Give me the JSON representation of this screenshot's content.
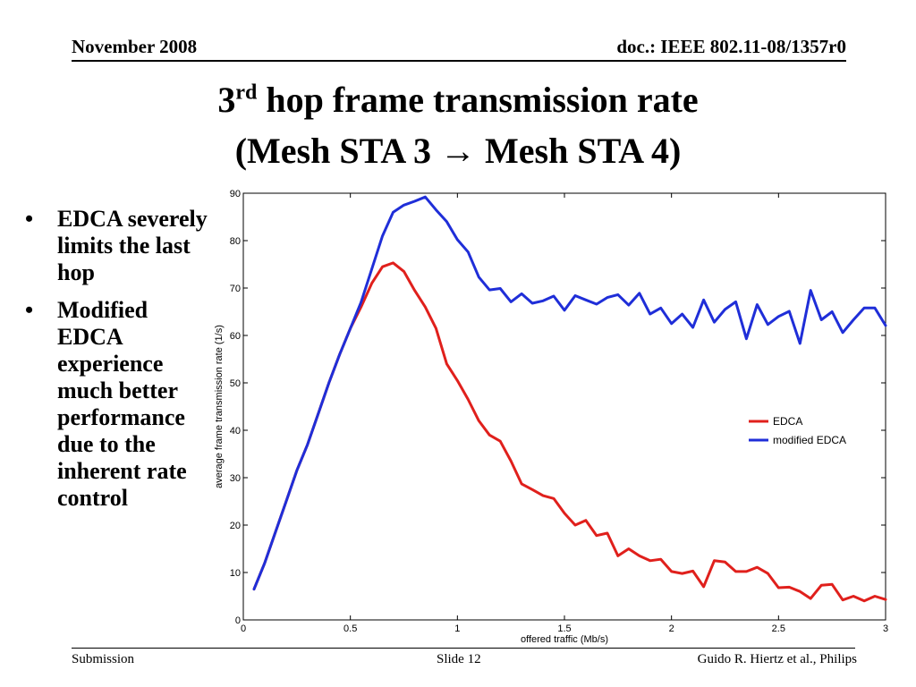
{
  "header": {
    "date": "November 2008",
    "doc": "doc.: IEEE 802.11-08/1357r0"
  },
  "title": {
    "line1_num": "3",
    "line1_sup": "rd",
    "line1_rest": " hop frame transmission rate",
    "line2": "(Mesh STA 3 → Mesh STA 4)"
  },
  "bullets": [
    "EDCA severely limits the last hop",
    "Modified EDCA experience much better performance due to the inherent rate control"
  ],
  "footer": {
    "left": "Submission",
    "center": "Slide 12",
    "right": "Guido R. Hiertz et al., Philips"
  },
  "chart_data": {
    "type": "line",
    "xlabel": "offered traffic (Mb/s)",
    "ylabel": "average frame transmission rate (1/s)",
    "xlim": [
      0,
      3
    ],
    "ylim": [
      0,
      90
    ],
    "xticks": [
      0,
      0.5,
      1,
      1.5,
      2,
      2.5,
      3
    ],
    "yticks": [
      0,
      10,
      20,
      30,
      40,
      50,
      60,
      70,
      80,
      90
    ],
    "xtick_labels": [
      "0",
      "0.5",
      "1",
      "1.5",
      "2",
      "2.5",
      "3"
    ],
    "ytick_labels": [
      "0",
      "10",
      "20",
      "30",
      "40",
      "50",
      "60",
      "70",
      "80",
      "90"
    ],
    "grid": false,
    "legend": "right",
    "x": [
      0.05,
      0.1,
      0.15,
      0.2,
      0.25,
      0.3,
      0.35,
      0.4,
      0.45,
      0.5,
      0.55,
      0.6,
      0.65,
      0.7,
      0.75,
      0.8,
      0.85,
      0.9,
      0.95,
      1.0,
      1.05,
      1.1,
      1.15,
      1.2,
      1.25,
      1.3,
      1.35,
      1.4,
      1.45,
      1.5,
      1.55,
      1.6,
      1.65,
      1.7,
      1.75,
      1.8,
      1.85,
      1.9,
      1.95,
      2.0,
      2.05,
      2.1,
      2.15,
      2.2,
      2.25,
      2.3,
      2.35,
      2.4,
      2.45,
      2.5,
      2.55,
      2.6,
      2.65,
      2.7,
      2.75,
      2.8,
      2.85,
      2.9,
      2.95,
      3.0
    ],
    "series": [
      {
        "name": "EDCA",
        "color": "#e0201c",
        "values": [
          6.5,
          12,
          18.5,
          25,
          31.5,
          37,
          43.5,
          50,
          56,
          61.5,
          66,
          71,
          74.5,
          75.3,
          73.5,
          69.5,
          66,
          61.5,
          54,
          50.5,
          46.5,
          42,
          39,
          37.7,
          33.5,
          28.7,
          27.5,
          26.2,
          25.6,
          22.5,
          20,
          21,
          17.8,
          18.3,
          13.5,
          15,
          13.5,
          12.5,
          12.8,
          10.2,
          9.8,
          10.3,
          7,
          12.5,
          12.2,
          10.2,
          10.2,
          11.1,
          9.8,
          6.8,
          6.9,
          6,
          4.5,
          7.3,
          7.5,
          4.2,
          5,
          4,
          5,
          4.3
        ]
      },
      {
        "name": "modified EDCA",
        "color": "#1f2ed8",
        "values": [
          6.5,
          12,
          18.5,
          25,
          31.5,
          37,
          43.5,
          50,
          56,
          61.5,
          67,
          74,
          81,
          86,
          87.5,
          88.3,
          89.2,
          86.5,
          84,
          80.2,
          77.6,
          72.3,
          69.6,
          69.9,
          67.1,
          68.8,
          66.8,
          67.3,
          68.3,
          65.3,
          68.4,
          67.5,
          66.6,
          68,
          68.6,
          66.4,
          68.9,
          64.5,
          65.8,
          62.5,
          64.5,
          61.7,
          67.5,
          62.8,
          65.5,
          67.1,
          59.3,
          66.5,
          62.3,
          64,
          65.1,
          58.3,
          69.5,
          63.3,
          65,
          60.6,
          63.3,
          65.8,
          65.8,
          62.1
        ]
      }
    ]
  }
}
